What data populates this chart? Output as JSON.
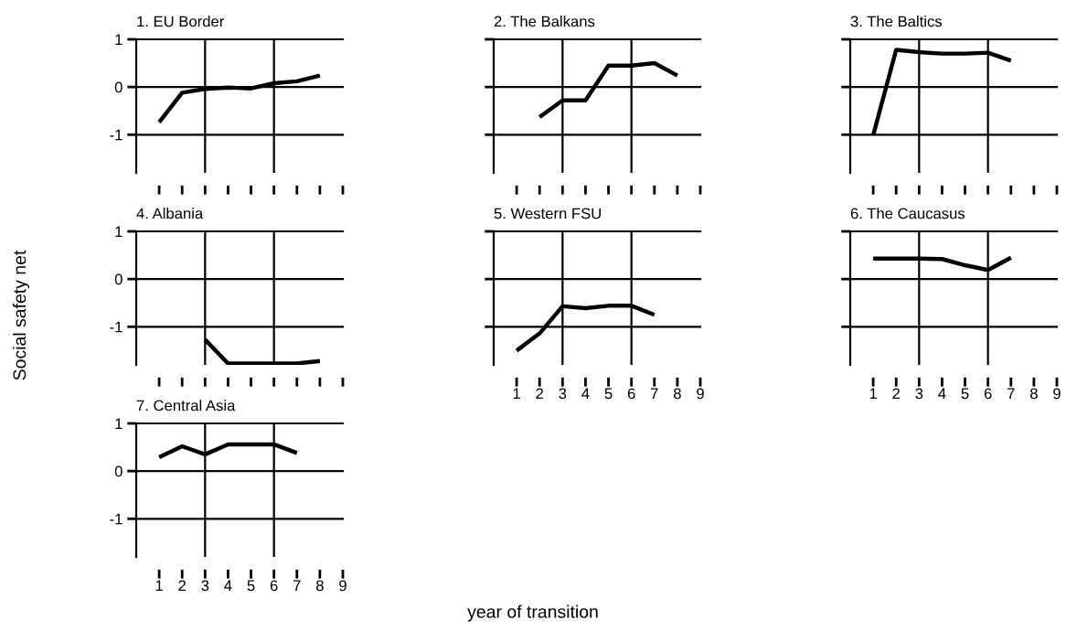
{
  "chart_data": [
    {
      "type": "line",
      "title": "1. EU Border",
      "x": [
        1,
        2,
        3,
        4,
        5,
        6,
        7,
        8
      ],
      "values": [
        -0.74,
        -0.12,
        -0.04,
        -0.01,
        -0.03,
        0.08,
        0.12,
        0.24
      ],
      "color": "#000000",
      "xlim": [
        0,
        9
      ],
      "xticks": [
        1,
        2,
        3,
        4,
        5,
        6,
        7,
        8,
        9
      ],
      "ylim": [
        -1.8,
        1
      ],
      "yticks": [
        -1,
        0,
        1
      ],
      "grid": "y",
      "ref_lines": [
        {
          "axis": "x",
          "value": 3
        },
        {
          "axis": "x",
          "value": 6
        }
      ],
      "tick_labels": "y"
    },
    {
      "type": "line",
      "title": "2. The Balkans",
      "x": [
        2,
        3,
        4,
        5,
        6,
        7,
        8
      ],
      "values": [
        -0.63,
        -0.28,
        -0.28,
        0.45,
        0.45,
        0.5,
        0.24
      ],
      "color": "#000000",
      "xlim": [
        0,
        9
      ],
      "xticks": [
        1,
        2,
        3,
        4,
        5,
        6,
        7,
        8,
        9
      ],
      "ylim": [
        -1.8,
        1
      ],
      "yticks": [
        -1,
        0,
        1
      ],
      "grid": "y",
      "ref_lines": [
        {
          "axis": "x",
          "value": 3
        },
        {
          "axis": "x",
          "value": 6
        }
      ],
      "tick_labels": false
    },
    {
      "type": "line",
      "title": "3. The Baltics",
      "x": [
        1,
        2,
        3,
        4,
        5,
        6,
        7
      ],
      "values": [
        -1.01,
        0.78,
        0.73,
        0.7,
        0.7,
        0.72,
        0.55
      ],
      "color": "#000000",
      "xlim": [
        0,
        9
      ],
      "xticks": [
        1,
        2,
        3,
        4,
        5,
        6,
        7,
        8,
        9
      ],
      "ylim": [
        -1.8,
        1
      ],
      "yticks": [
        -1,
        0,
        1
      ],
      "grid": "y",
      "ref_lines": [
        {
          "axis": "x",
          "value": 3
        },
        {
          "axis": "x",
          "value": 6
        }
      ],
      "tick_labels": false
    },
    {
      "type": "line",
      "title": "4. Albania",
      "ylabel": "Social safety net",
      "x": [
        3,
        4,
        5,
        6,
        7,
        8
      ],
      "values": [
        -1.27,
        -1.77,
        -1.77,
        -1.77,
        -1.77,
        -1.72
      ],
      "color": "#000000",
      "xlim": [
        0,
        9
      ],
      "xticks": [
        1,
        2,
        3,
        4,
        5,
        6,
        7,
        8,
        9
      ],
      "ylim": [
        -1.8,
        1
      ],
      "yticks": [
        -1,
        0,
        1
      ],
      "grid": "y",
      "ref_lines": [
        {
          "axis": "x",
          "value": 3
        },
        {
          "axis": "x",
          "value": 6
        }
      ],
      "tick_labels": "y"
    },
    {
      "type": "line",
      "title": "5. Western FSU",
      "xlabel": "year of transition",
      "x": [
        1,
        2,
        3,
        4,
        5,
        6,
        7
      ],
      "values": [
        -1.5,
        -1.14,
        -0.57,
        -0.61,
        -0.56,
        -0.56,
        -0.75
      ],
      "color": "#000000",
      "xlim": [
        0,
        9
      ],
      "xticks": [
        1,
        2,
        3,
        4,
        5,
        6,
        7,
        8,
        9
      ],
      "ylim": [
        -1.8,
        1
      ],
      "yticks": [
        -1,
        0,
        1
      ],
      "grid": "y",
      "ref_lines": [
        {
          "axis": "x",
          "value": 3
        },
        {
          "axis": "x",
          "value": 6
        }
      ],
      "tick_labels": "x"
    },
    {
      "type": "line",
      "title": "6. The Caucasus",
      "x": [
        1,
        2,
        3,
        4,
        5,
        6,
        7
      ],
      "values": [
        0.43,
        0.43,
        0.43,
        0.42,
        0.29,
        0.19,
        0.45
      ],
      "color": "#000000",
      "xlim": [
        0,
        9
      ],
      "xticks": [
        1,
        2,
        3,
        4,
        5,
        6,
        7,
        8,
        9
      ],
      "ylim": [
        -1.8,
        1
      ],
      "yticks": [
        -1,
        0,
        1
      ],
      "grid": "y",
      "ref_lines": [
        {
          "axis": "x",
          "value": 3
        },
        {
          "axis": "x",
          "value": 6
        }
      ],
      "tick_labels": "x"
    },
    {
      "type": "line",
      "title": "7. Central Asia",
      "x": [
        1,
        2,
        3,
        4,
        5,
        6,
        7
      ],
      "values": [
        0.29,
        0.52,
        0.35,
        0.56,
        0.56,
        0.56,
        0.38
      ],
      "color": "#000000",
      "xlim": [
        0,
        9
      ],
      "xticks": [
        1,
        2,
        3,
        4,
        5,
        6,
        7,
        8,
        9
      ],
      "ylim": [
        -1.8,
        1
      ],
      "yticks": [
        -1,
        0,
        1
      ],
      "grid": "y",
      "ref_lines": [
        {
          "axis": "x",
          "value": 3
        },
        {
          "axis": "x",
          "value": 6
        }
      ]
    }
  ]
}
